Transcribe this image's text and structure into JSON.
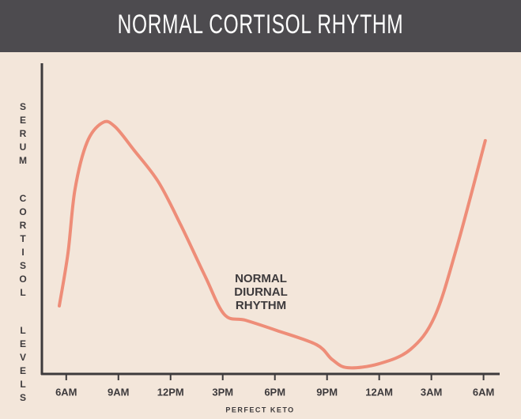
{
  "chart_data": {
    "type": "line",
    "title": "NORMAL CORTISOL RHYTHM",
    "y_label": "SERUM CORTISOL LEVELS",
    "annotation": [
      "NORMAL",
      "DIURNAL",
      "RHYTHM"
    ],
    "xlim": [
      -1.4,
      24.7
    ],
    "ylim": [
      0,
      100
    ],
    "xticks": [
      {
        "value": 0,
        "label": "6AM"
      },
      {
        "value": 3,
        "label": "9AM"
      },
      {
        "value": 6,
        "label": "12PM"
      },
      {
        "value": 9,
        "label": "3PM"
      },
      {
        "value": 12,
        "label": "6PM"
      },
      {
        "value": 15,
        "label": "9PM"
      },
      {
        "value": 18,
        "label": "12AM"
      },
      {
        "value": 21,
        "label": "3AM"
      },
      {
        "value": 24,
        "label": "6AM"
      }
    ],
    "series": [
      {
        "color": "#ee8d78",
        "x": [
          -0.4,
          0.1,
          0.5,
          1.2,
          2.1,
          2.8,
          3.9,
          5.3,
          6.6,
          8.0,
          9.1,
          10.3,
          12.1,
          14.4,
          15.3,
          16.2,
          18.0,
          19.8,
          21.2,
          22.5,
          24.1
        ],
        "values": [
          21.9,
          38.9,
          59.3,
          74.6,
          80.9,
          79.6,
          72.0,
          61.8,
          47.8,
          31.3,
          19.1,
          17.3,
          14.0,
          9.4,
          4.6,
          2.0,
          3.3,
          7.9,
          18.6,
          41.5,
          75.1
        ]
      }
    ],
    "footer": "PERFECT KETO"
  }
}
